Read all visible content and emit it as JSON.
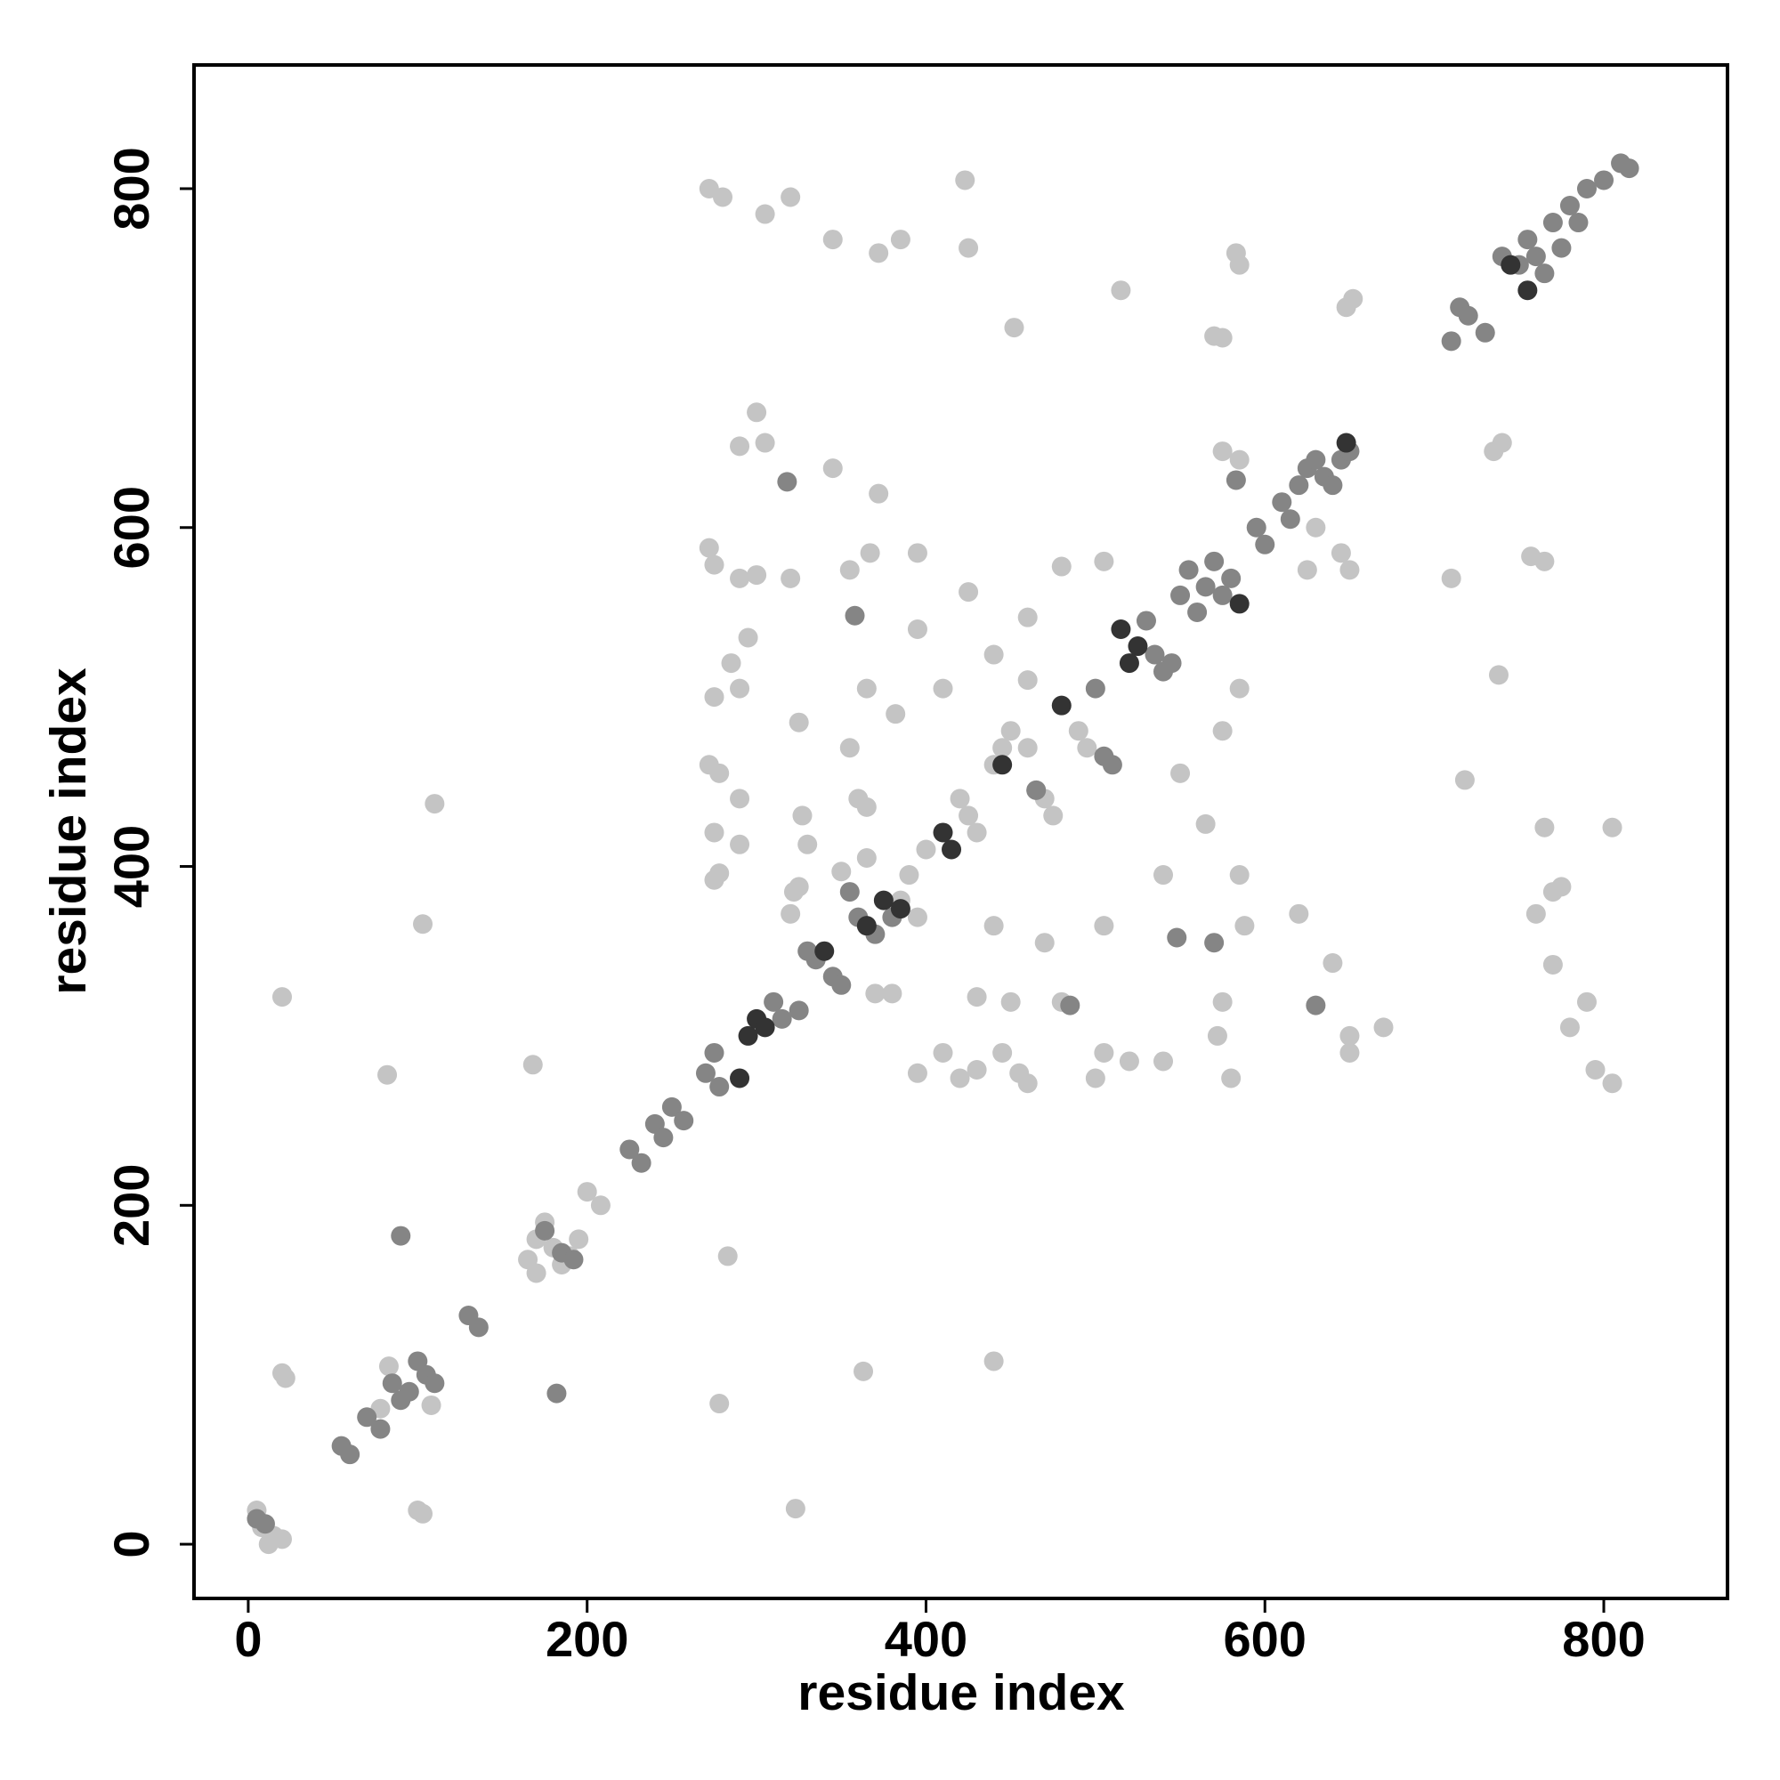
{
  "chart_data": {
    "type": "scatter",
    "x_label": "residue index",
    "y_label": "residue index",
    "xlim": [
      -32,
      873
    ],
    "ylim": [
      -32,
      873
    ],
    "xticks": [
      0,
      200,
      400,
      600,
      800
    ],
    "yticks": [
      0,
      200,
      400,
      600,
      800
    ],
    "grid": false,
    "series": [
      {
        "color": "#c4c4c4",
        "x": [
          5,
          8,
          15,
          20,
          12,
          20,
          22,
          100,
          103,
          83,
          108,
          78,
          82,
          20,
          103,
          110,
          165,
          170,
          175,
          180,
          185,
          190,
          195,
          170,
          168,
          283,
          278,
          323,
          200,
          208,
          320,
          322,
          390,
          365,
          360,
          400,
          420,
          425,
          430,
          440,
          445,
          450,
          460,
          465,
          470,
          475,
          490,
          495,
          272,
          280,
          305,
          320,
          345,
          372,
          385,
          423,
          425,
          452,
          515,
          583,
          585,
          648,
          652,
          575,
          570,
          300,
          290,
          305,
          345,
          372,
          735,
          740,
          575,
          585,
          630,
          625,
          645,
          650,
          272,
          275,
          290,
          300,
          320,
          355,
          367,
          395,
          425,
          480,
          505,
          295,
          285,
          290,
          275,
          365,
          395,
          460,
          382,
          410,
          440,
          460,
          325,
          355,
          365,
          327,
          330,
          290,
          278,
          272,
          275,
          290,
          275,
          278,
          350,
          395,
          325,
          540,
          550,
          565,
          585,
          575,
          585,
          440,
          450,
          430,
          445,
          470,
          480,
          505,
          505,
          520,
          540,
          572,
          575,
          580,
          588,
          500,
          430,
          420,
          395,
          410,
          455,
          460,
          370,
          380,
          385,
          620,
          640,
          650,
          670,
          650,
          760,
          770,
          775,
          770,
          765,
          805,
          718,
          738,
          757,
          765,
          710,
          780,
          790,
          795,
          805,
          440,
          363
        ],
        "y": [
          20,
          10,
          5,
          3,
          0,
          101,
          98,
          20,
          18,
          105,
          82,
          80,
          277,
          323,
          366,
          437,
          168,
          180,
          190,
          175,
          165,
          170,
          180,
          160,
          283,
          170,
          83,
          21,
          208,
          200,
          372,
          385,
          395,
          405,
          440,
          410,
          440,
          430,
          420,
          460,
          470,
          480,
          470,
          445,
          440,
          430,
          480,
          470,
          800,
          795,
          785,
          795,
          770,
          762,
          770,
          805,
          765,
          718,
          740,
          762,
          755,
          730,
          735,
          712,
          713,
          668,
          648,
          650,
          635,
          620,
          645,
          650,
          645,
          640,
          600,
          575,
          585,
          575,
          588,
          578,
          570,
          572,
          570,
          575,
          585,
          585,
          562,
          577,
          580,
          535,
          520,
          505,
          500,
          505,
          540,
          547,
          490,
          505,
          525,
          510,
          485,
          470,
          435,
          430,
          413,
          440,
          455,
          460,
          420,
          413,
          392,
          396,
          397,
          370,
          388,
          395,
          455,
          425,
          395,
          480,
          505,
          365,
          320,
          323,
          290,
          355,
          320,
          365,
          290,
          285,
          285,
          300,
          320,
          275,
          365,
          275,
          280,
          275,
          278,
          290,
          278,
          272,
          325,
          325,
          380,
          372,
          343,
          290,
          305,
          300,
          372,
          385,
          388,
          342,
          423,
          423,
          451,
          513,
          583,
          580,
          570,
          305,
          320,
          280,
          272,
          108,
          102
        ]
      },
      {
        "color": "#858585",
        "x": [
          5,
          10,
          55,
          60,
          70,
          78,
          85,
          90,
          95,
          100,
          105,
          110,
          90,
          130,
          136,
          175,
          185,
          192,
          182,
          225,
          232,
          240,
          245,
          250,
          257,
          270,
          278,
          275,
          310,
          315,
          325,
          330,
          335,
          345,
          350,
          355,
          360,
          370,
          380,
          465,
          500,
          505,
          510,
          530,
          535,
          540,
          545,
          550,
          555,
          560,
          565,
          570,
          575,
          580,
          595,
          600,
          610,
          615,
          620,
          625,
          630,
          635,
          640,
          645,
          650,
          710,
          715,
          720,
          730,
          740,
          750,
          755,
          760,
          765,
          770,
          775,
          780,
          785,
          790,
          800,
          810,
          815,
          318,
          583,
          358,
          485,
          548,
          570,
          630
        ],
        "y": [
          15,
          12,
          58,
          53,
          75,
          68,
          95,
          85,
          90,
          108,
          100,
          95,
          182,
          135,
          128,
          185,
          172,
          168,
          89,
          233,
          225,
          248,
          240,
          258,
          250,
          278,
          270,
          290,
          320,
          310,
          315,
          350,
          345,
          335,
          330,
          385,
          370,
          360,
          370,
          445,
          505,
          465,
          460,
          545,
          525,
          515,
          520,
          560,
          575,
          550,
          565,
          580,
          560,
          570,
          600,
          590,
          615,
          605,
          625,
          635,
          640,
          630,
          625,
          640,
          645,
          710,
          730,
          725,
          715,
          760,
          755,
          770,
          760,
          750,
          780,
          765,
          790,
          780,
          800,
          805,
          815,
          812,
          627,
          628,
          548,
          318,
          358,
          355,
          318
        ]
      },
      {
        "color": "#333333",
        "x": [
          290,
          295,
          300,
          305,
          340,
          365,
          375,
          385,
          410,
          415,
          445,
          480,
          515,
          520,
          525,
          585,
          648,
          745,
          755
        ],
        "y": [
          275,
          300,
          310,
          305,
          350,
          365,
          380,
          375,
          420,
          410,
          460,
          495,
          540,
          520,
          530,
          555,
          650,
          755,
          740
        ]
      }
    ]
  }
}
